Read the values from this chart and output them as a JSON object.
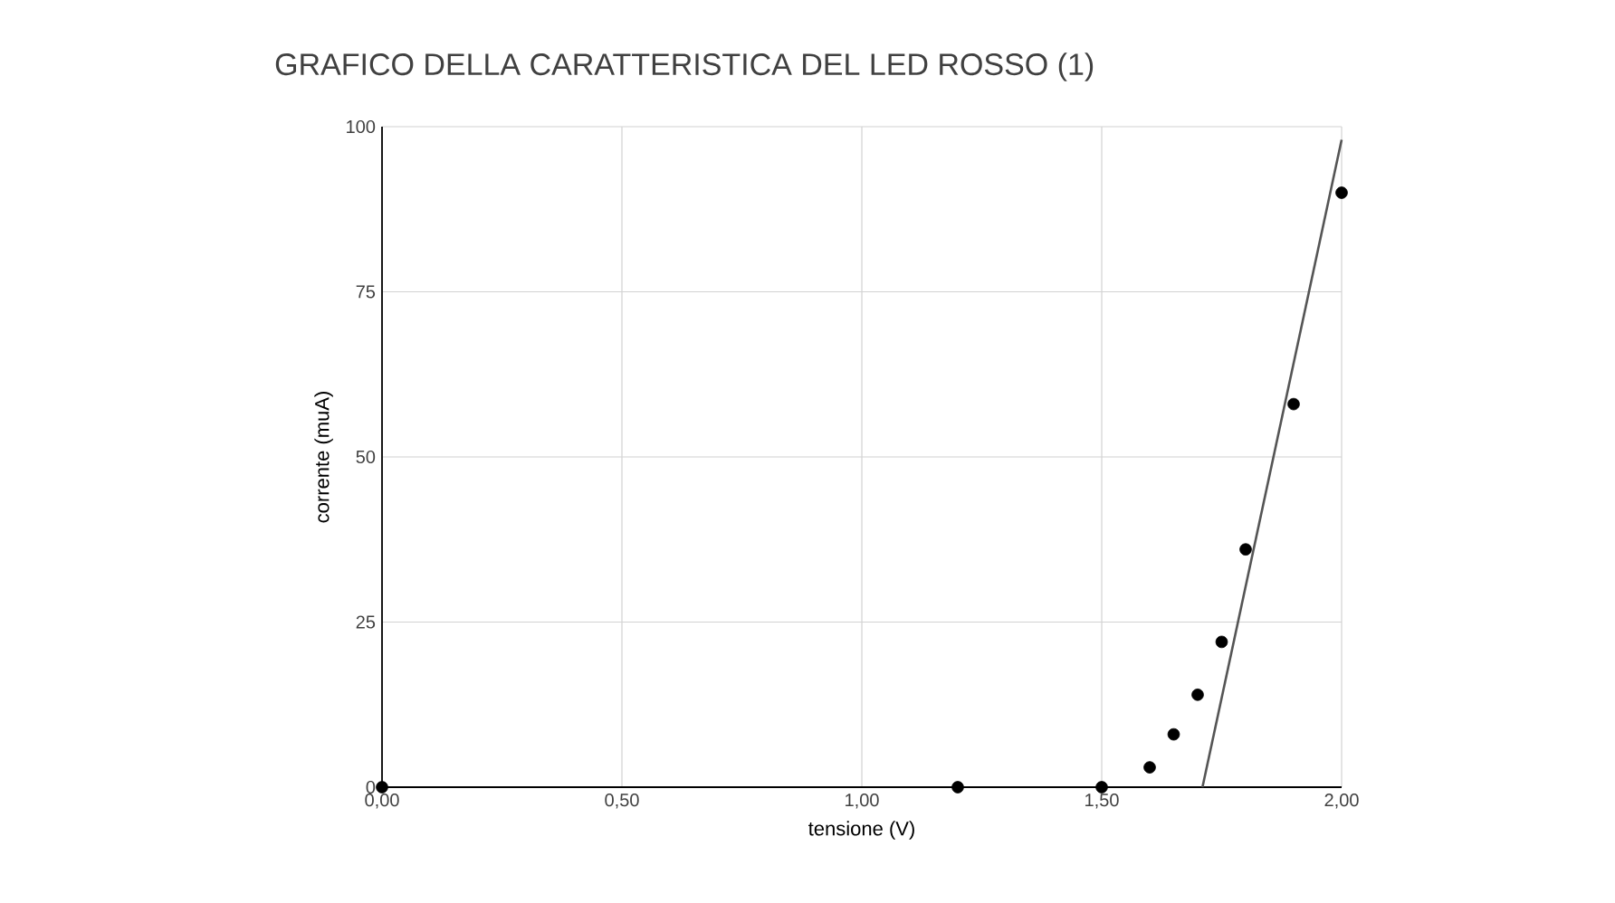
{
  "chart_data": {
    "type": "scatter",
    "title": "GRAFICO DELLA CARATTERISTICA DEL LED ROSSO (1)",
    "xlabel": "tensione (V)",
    "ylabel": "corrente (muA)",
    "series": [
      {
        "color": "#000000",
        "marker": "circle",
        "x": [
          0,
          1.2,
          1.5,
          1.6,
          1.65,
          1.7,
          1.75,
          1.8,
          1.9,
          2.0
        ],
        "values": [
          0,
          0,
          0,
          3,
          8,
          14,
          22,
          36,
          58,
          90
        ]
      },
      {
        "type": "line",
        "color": "#555555",
        "marker": "none",
        "x": [
          1.71,
          2.0
        ],
        "values": [
          0,
          98
        ]
      }
    ],
    "xlim": [
      0,
      2
    ],
    "ylim": [
      0,
      100
    ],
    "xticks": [
      {
        "value": 0,
        "label": "0,00"
      },
      {
        "value": 0.5,
        "label": "0,50"
      },
      {
        "value": 1,
        "label": "1,00"
      },
      {
        "value": 1.5,
        "label": "1,50"
      },
      {
        "value": 2,
        "label": "2,00"
      }
    ],
    "yticks": [
      0,
      25,
      50,
      75,
      100
    ],
    "grid": true
  }
}
